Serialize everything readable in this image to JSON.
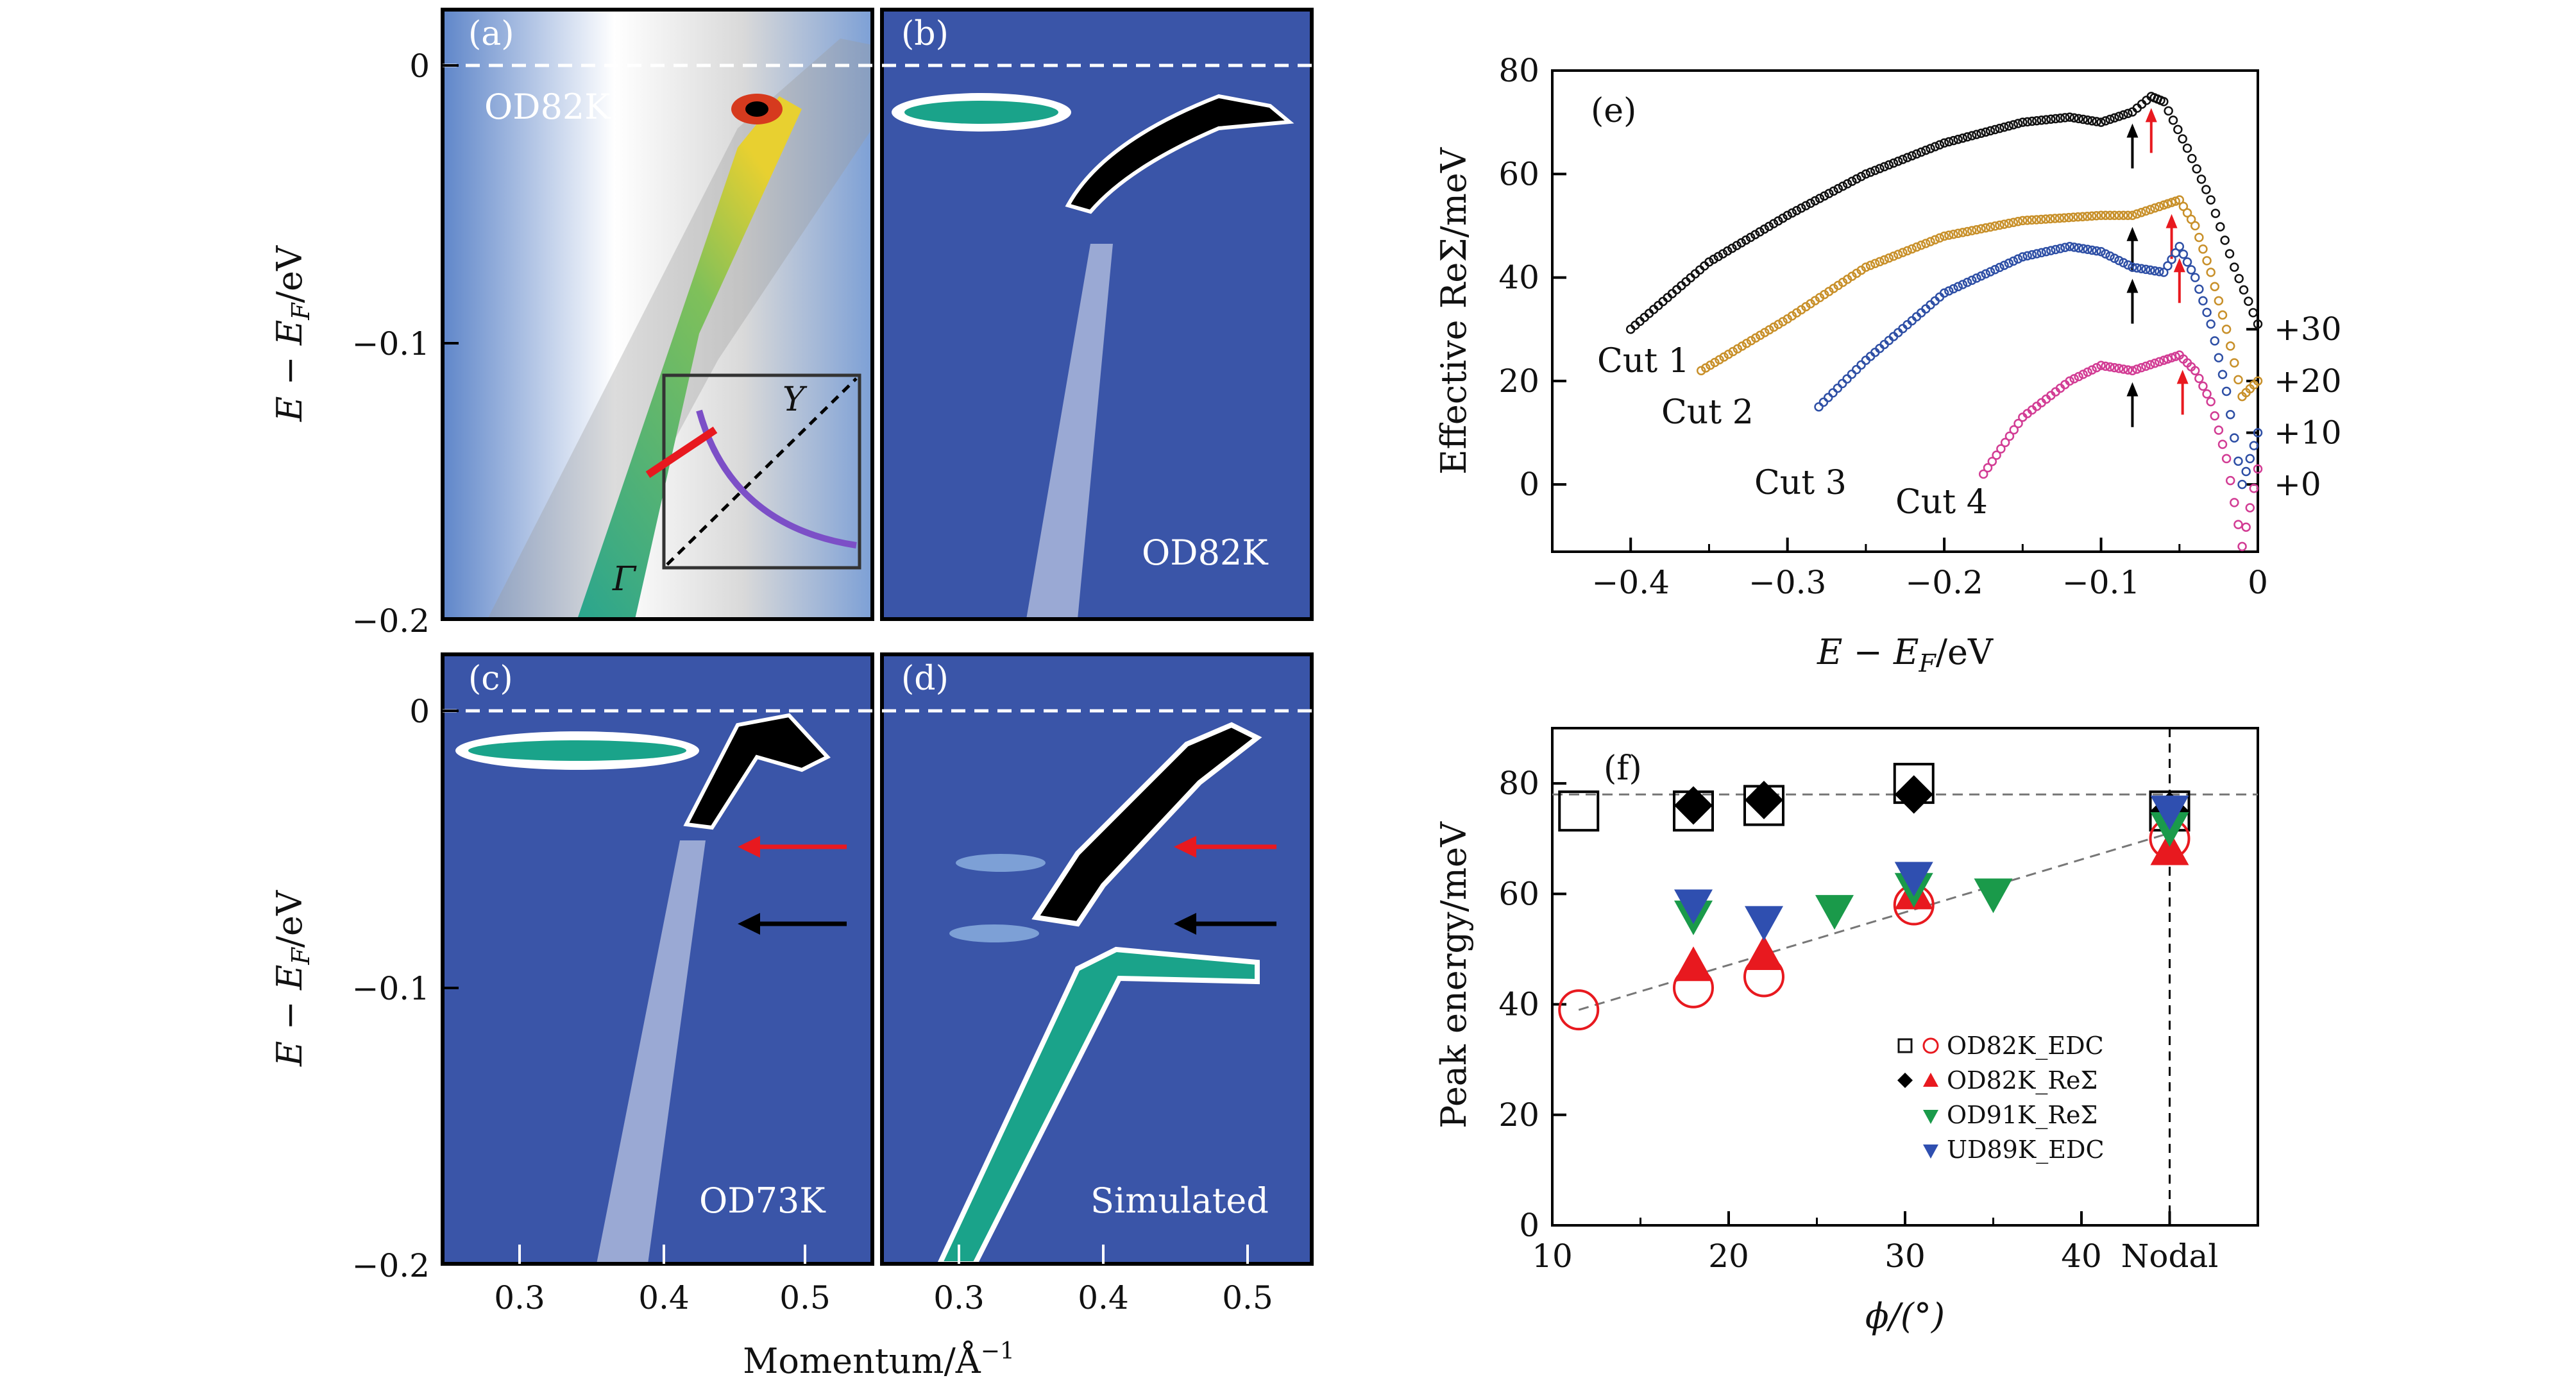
{
  "panels": {
    "a": {
      "tag": "(a)",
      "sample": "OD82K",
      "inset": {
        "Y": "Y",
        "Gamma": "Γ"
      }
    },
    "b": {
      "tag": "(b)",
      "sample": "OD82K"
    },
    "c": {
      "tag": "(c)",
      "sample": "OD73K"
    },
    "d": {
      "tag": "(d)",
      "sample": "Simulated"
    },
    "e": {
      "tag": "(e)"
    },
    "f": {
      "tag": "(f)"
    }
  },
  "arpes_axes": {
    "y_label": "E − E",
    "y_label_sub": "F",
    "y_label_unit": "/eV",
    "y_ticks": [
      "0",
      "−0.1",
      "−0.2"
    ],
    "x_label": "Momentum/Å",
    "x_label_sup": "−1",
    "x_ticks_left": [
      "0.3",
      "0.4",
      "0.5"
    ],
    "x_ticks_right": [
      "0.3",
      "0.4",
      "0.5"
    ]
  },
  "colors": {
    "arpes_bg": "#3a55a8",
    "dispersion": "#000000",
    "teal": "#1aa38a",
    "red": "#e8191f",
    "black": "#000000",
    "cut1": "#111111",
    "cut2": "#c8902a",
    "cut3": "#2e4fa5",
    "cut4": "#d23c94",
    "green": "#1a9a4a",
    "blue": "#2f4fb0"
  },
  "chart_data": [
    {
      "type": "scatter",
      "panel": "e",
      "title": "",
      "xlabel": "E − E",
      "xlabel_sub": "F",
      "xlabel_unit": "/eV",
      "ylabel": "Effective ReΣ/meV",
      "xlim": [
        -0.45,
        0
      ],
      "ylim": [
        -13,
        80
      ],
      "x_ticks": [
        "−0.4",
        "−0.3",
        "−0.2",
        "−0.1",
        "0"
      ],
      "x_tick_values": [
        -0.4,
        -0.3,
        -0.2,
        -0.1,
        0
      ],
      "y_ticks": [
        "0",
        "20",
        "40",
        "60",
        "80"
      ],
      "y_tick_values": [
        0,
        20,
        40,
        60,
        80
      ],
      "offset_labels": [
        "+30",
        "+20",
        "+10",
        "+0"
      ],
      "offset_values": [
        30,
        20,
        10,
        0
      ],
      "series": [
        {
          "name": "Cut 1",
          "offset": 30,
          "x": [
            -0.4,
            -0.35,
            -0.3,
            -0.25,
            -0.2,
            -0.15,
            -0.12,
            -0.1,
            -0.08,
            -0.068,
            -0.06,
            -0.045,
            -0.03,
            -0.015,
            0
          ],
          "y": [
            30,
            43,
            52,
            60,
            66,
            70,
            71,
            70,
            72,
            75,
            74,
            65,
            55,
            42,
            31
          ],
          "arrows": [
            -0.08,
            -0.068
          ]
        },
        {
          "name": "Cut 2",
          "offset": 20,
          "x": [
            -0.355,
            -0.3,
            -0.25,
            -0.2,
            -0.15,
            -0.1,
            -0.08,
            -0.06,
            -0.05,
            -0.04,
            -0.03,
            -0.02,
            -0.01,
            0
          ],
          "y": [
            22,
            32,
            42,
            48,
            51,
            52,
            52,
            54,
            55,
            50,
            41,
            30,
            17,
            20
          ],
          "arrows": [
            -0.08,
            -0.055
          ]
        },
        {
          "name": "Cut 3",
          "offset": 10,
          "x": [
            -0.28,
            -0.25,
            -0.2,
            -0.15,
            -0.12,
            -0.1,
            -0.08,
            -0.06,
            -0.05,
            -0.04,
            -0.03,
            -0.02,
            -0.01,
            0
          ],
          "y": [
            15,
            24,
            37,
            44,
            46,
            45,
            42,
            41,
            46,
            40,
            31,
            18,
            0,
            10
          ],
          "arrows": [
            -0.08,
            -0.05
          ]
        },
        {
          "name": "Cut 4",
          "offset": 0,
          "x": [
            -0.175,
            -0.15,
            -0.12,
            -0.1,
            -0.08,
            -0.06,
            -0.05,
            -0.04,
            -0.03,
            -0.02,
            -0.01,
            0
          ],
          "y": [
            2,
            13,
            20,
            23,
            22,
            24,
            25,
            22,
            16,
            5,
            -12,
            3
          ],
          "arrows": [
            -0.08,
            -0.048
          ]
        }
      ]
    },
    {
      "type": "scatter",
      "panel": "f",
      "xlabel": "ϕ/(°)",
      "ylabel": "Peak energy/meV",
      "xlim": [
        10,
        50
      ],
      "ylim": [
        0,
        90
      ],
      "x_ticks": [
        "10",
        "20",
        "30",
        "40",
        "Nodal"
      ],
      "x_tick_values": [
        10,
        20,
        30,
        40,
        45
      ],
      "y_ticks": [
        "0",
        "20",
        "40",
        "60",
        "80"
      ],
      "y_tick_values": [
        0,
        20,
        40,
        60,
        80
      ],
      "legend": [
        "OD82K_EDC",
        "OD82K_ReΣ",
        "OD91K_ReΣ",
        "UD89K_EDC"
      ],
      "series": [
        {
          "name": "OD82K_EDC (square)",
          "marker": "open-square",
          "x": [
            11.5,
            18,
            22,
            30.5,
            45
          ],
          "y": [
            75,
            75,
            76,
            80,
            75
          ]
        },
        {
          "name": "OD82K_ReΣ (diamond)",
          "marker": "diamond",
          "x": [
            18,
            22,
            30.5,
            45
          ],
          "y": [
            76,
            77,
            78,
            75
          ]
        },
        {
          "name": "OD82K_EDC (circle)",
          "marker": "open-circle",
          "x": [
            11.5,
            18,
            22,
            30.5,
            45
          ],
          "y": [
            39,
            43,
            45,
            58,
            70
          ]
        },
        {
          "name": "OD82K_ReΣ (triangle)",
          "marker": "triangle-up",
          "x": [
            18,
            22,
            30.5,
            45
          ],
          "y": [
            47,
            49,
            60,
            68
          ]
        },
        {
          "name": "OD91K_ReΣ",
          "marker": "triangle-down",
          "x": [
            18,
            26,
            30.5,
            35,
            45
          ],
          "y": [
            56,
            57,
            61,
            60,
            72
          ]
        },
        {
          "name": "UD89K_EDC",
          "marker": "triangle-down",
          "x": [
            18,
            22,
            30.5,
            45
          ],
          "y": [
            58,
            55,
            63,
            75
          ]
        }
      ],
      "guide_lines": {
        "horizontal_y": 78,
        "diagonal": {
          "x": [
            11.5,
            45
          ],
          "y": [
            39,
            71
          ]
        },
        "nodal_x": 45
      }
    }
  ],
  "labels": {
    "e_ylabel": "Effective ReΣ/meV",
    "f_ylabel": "Peak energy/meV",
    "f_xlabel": "ϕ/(°)",
    "cut1": "Cut 1",
    "cut2": "Cut 2",
    "cut3": "Cut 3",
    "cut4": "Cut 4"
  }
}
